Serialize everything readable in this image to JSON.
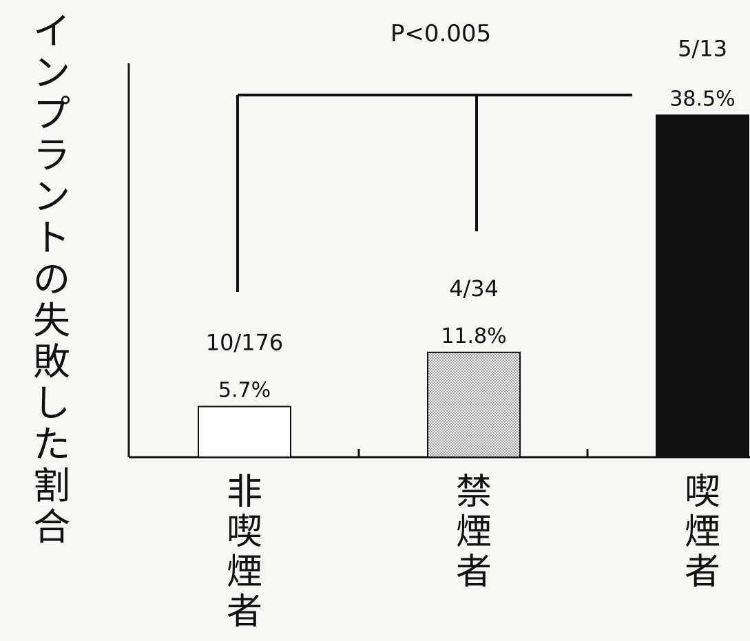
{
  "chart_data": {
    "type": "bar",
    "title": "",
    "ylabel": "インプラントの失敗した割合",
    "xlabel": "",
    "ylim": [
      0,
      45
    ],
    "grid": false,
    "categories": [
      "非喫煙者",
      "禁煙者",
      "喫煙者"
    ],
    "values": [
      5.7,
      11.8,
      38.5
    ],
    "percent_labels": [
      "5.7%",
      "11.8%",
      "38.5%"
    ],
    "count_labels": [
      "10/176",
      "4/34",
      "5/13"
    ],
    "bar_fills": [
      "white",
      "stipple",
      "black"
    ],
    "significance": {
      "label": "P<0.005",
      "groups": [
        0,
        1,
        2
      ]
    }
  },
  "colors": {
    "ink": "#111111",
    "background": "#f7f7f5",
    "stipple": "#b8b8b8"
  }
}
